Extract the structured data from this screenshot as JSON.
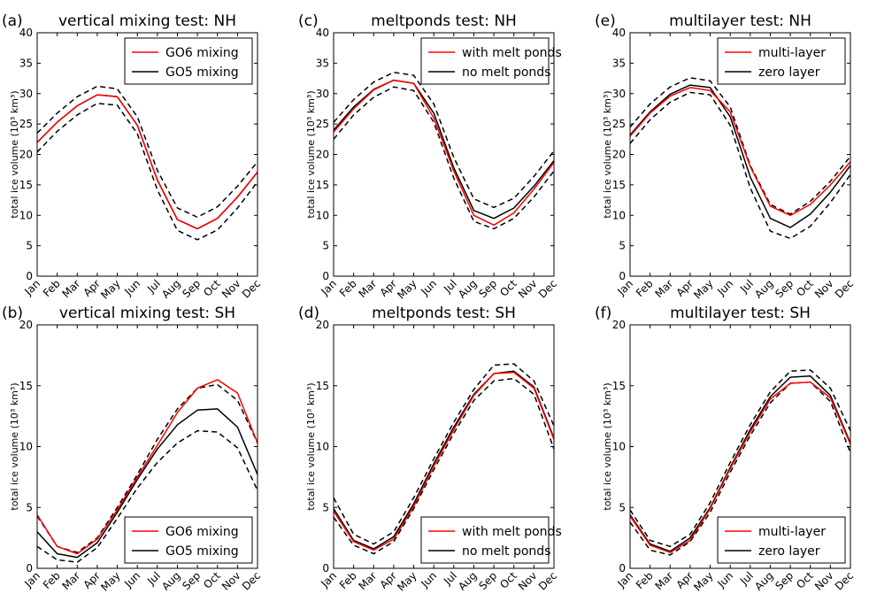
{
  "chart_data": [
    {
      "panel_label": "(a)",
      "title": "vertical mixing test: NH",
      "type": "line",
      "ylabel": "total ice volume (10³ km³)",
      "ylim": [
        0,
        40
      ],
      "yticks": [
        0,
        5,
        10,
        15,
        20,
        25,
        30,
        35,
        40
      ],
      "legend_position": "top-right",
      "categories": [
        "Jan",
        "Feb",
        "Mar",
        "Apr",
        "May",
        "Jun",
        "Jul",
        "Aug",
        "Sep",
        "Oct",
        "Nov",
        "Dec"
      ],
      "series": [
        {
          "name": "GO6 mixing",
          "color": "#ff0000",
          "style": "solid",
          "values": [
            22.0,
            25.3,
            28.0,
            29.8,
            29.5,
            24.8,
            15.8,
            9.3,
            7.8,
            9.5,
            13.0,
            17.1
          ]
        },
        {
          "name": "GO5 mixing",
          "color": "#000000",
          "style": "solid",
          "values": [
            22.0,
            25.3,
            28.0,
            29.8,
            29.5,
            24.8,
            15.8,
            9.3,
            7.8,
            9.5,
            13.0,
            17.1
          ]
        },
        {
          "color": "#000000",
          "style": "dashed",
          "values": [
            23.5,
            26.8,
            29.5,
            31.2,
            30.8,
            26.2,
            17.4,
            11.2,
            9.7,
            11.4,
            14.8,
            18.8
          ]
        },
        {
          "color": "#000000",
          "style": "dashed",
          "values": [
            20.4,
            23.8,
            26.5,
            28.4,
            28.1,
            23.4,
            14.2,
            7.5,
            6.0,
            7.6,
            11.2,
            15.5
          ]
        }
      ]
    },
    {
      "panel_label": "(c)",
      "title": "meltponds test: NH",
      "type": "line",
      "ylabel": "total ice volume (10³ km³)",
      "ylim": [
        0,
        40
      ],
      "yticks": [
        0,
        5,
        10,
        15,
        20,
        25,
        30,
        35,
        40
      ],
      "legend_position": "top-right",
      "categories": [
        "Jan",
        "Feb",
        "Mar",
        "Apr",
        "May",
        "Jun",
        "Jul",
        "Aug",
        "Sep",
        "Oct",
        "Nov",
        "Dec"
      ],
      "series": [
        {
          "name": "with melt ponds",
          "color": "#ff0000",
          "style": "solid",
          "values": [
            23.7,
            27.5,
            30.6,
            32.2,
            31.7,
            26.0,
            17.3,
            10.0,
            8.4,
            10.4,
            14.3,
            18.7
          ]
        },
        {
          "name": "no melt ponds",
          "color": "#000000",
          "style": "solid",
          "values": [
            24.0,
            27.8,
            30.7,
            32.2,
            31.7,
            26.8,
            17.8,
            10.8,
            9.5,
            11.2,
            14.8,
            19.0
          ]
        },
        {
          "color": "#000000",
          "style": "dashed",
          "values": [
            25.3,
            29.0,
            31.9,
            33.5,
            33.0,
            28.3,
            19.5,
            12.7,
            11.3,
            12.8,
            16.4,
            20.6
          ]
        },
        {
          "color": "#000000",
          "style": "dashed",
          "values": [
            22.5,
            26.5,
            29.4,
            31.1,
            30.5,
            25.3,
            16.1,
            9.0,
            7.8,
            9.5,
            13.0,
            17.3
          ]
        }
      ]
    },
    {
      "panel_label": "(e)",
      "title": "multilayer test: NH",
      "type": "line",
      "ylabel": "total ice volume (10³ km³)",
      "ylim": [
        0,
        40
      ],
      "yticks": [
        0,
        5,
        10,
        15,
        20,
        25,
        30,
        35,
        40
      ],
      "legend_position": "top-right",
      "categories": [
        "Jan",
        "Feb",
        "Mar",
        "Apr",
        "May",
        "Jun",
        "Jul",
        "Aug",
        "Sep",
        "Oct",
        "Nov",
        "Dec"
      ],
      "series": [
        {
          "name": "multi-layer",
          "color": "#ff0000",
          "style": "solid",
          "values": [
            23.0,
            26.8,
            29.6,
            31.0,
            30.5,
            27.0,
            18.0,
            11.5,
            10.0,
            11.8,
            15.0,
            18.8
          ]
        },
        {
          "name": "zero layer",
          "color": "#000000",
          "style": "solid",
          "values": [
            23.2,
            27.0,
            29.9,
            31.4,
            31.0,
            26.2,
            16.3,
            9.5,
            8.0,
            10.2,
            13.8,
            18.2
          ]
        },
        {
          "color": "#000000",
          "style": "dashed",
          "values": [
            24.5,
            28.3,
            31.1,
            32.6,
            32.1,
            27.8,
            18.2,
            11.8,
            10.2,
            12.3,
            15.6,
            19.7
          ]
        },
        {
          "color": "#000000",
          "style": "dashed",
          "values": [
            21.8,
            25.7,
            28.6,
            30.2,
            29.8,
            24.8,
            14.5,
            7.4,
            6.2,
            8.2,
            12.1,
            16.7
          ]
        }
      ]
    },
    {
      "panel_label": "(b)",
      "title": "vertical mixing test: SH",
      "type": "line",
      "ylabel": "total ice volume (10³ km³)",
      "ylim": [
        0,
        20
      ],
      "yticks": [
        0,
        5,
        10,
        15,
        20
      ],
      "legend_position": "bottom-right",
      "categories": [
        "Jan",
        "Feb",
        "Mar",
        "Apr",
        "May",
        "Jun",
        "Jul",
        "Aug",
        "Sep",
        "Oct",
        "Nov",
        "Dec"
      ],
      "series": [
        {
          "name": "GO6 mixing",
          "color": "#ff0000",
          "style": "solid",
          "values": [
            4.4,
            1.8,
            1.2,
            2.4,
            4.8,
            7.5,
            10.1,
            12.8,
            14.8,
            15.5,
            14.4,
            10.3
          ]
        },
        {
          "name": "GO5 mixing",
          "color": "#000000",
          "style": "solid",
          "values": [
            3.0,
            1.2,
            0.9,
            2.1,
            4.6,
            7.3,
            9.8,
            11.8,
            13.0,
            13.1,
            11.6,
            7.7
          ]
        },
        {
          "color": "#000000",
          "style": "dashed",
          "values": [
            4.3,
            1.8,
            1.3,
            2.5,
            5.0,
            7.7,
            10.6,
            13.1,
            14.8,
            15.1,
            13.8,
            10.3
          ]
        },
        {
          "color": "#000000",
          "style": "dashed",
          "values": [
            1.8,
            0.7,
            0.5,
            1.7,
            4.1,
            6.6,
            8.7,
            10.3,
            11.3,
            11.2,
            9.9,
            6.4
          ]
        }
      ]
    },
    {
      "panel_label": "(d)",
      "title": "meltponds test: SH",
      "type": "line",
      "ylabel": "total ice volume (10³ km³)",
      "ylim": [
        0,
        20
      ],
      "yticks": [
        0,
        5,
        10,
        15,
        20
      ],
      "legend_position": "bottom-right",
      "categories": [
        "Jan",
        "Feb",
        "Mar",
        "Apr",
        "May",
        "Jun",
        "Jul",
        "Aug",
        "Sep",
        "Oct",
        "Nov",
        "Dec"
      ],
      "series": [
        {
          "name": "with melt ponds",
          "color": "#ff0000",
          "style": "solid",
          "values": [
            4.7,
            2.2,
            1.5,
            2.4,
            5.1,
            8.4,
            11.4,
            14.2,
            16.0,
            16.1,
            14.8,
            10.6
          ]
        },
        {
          "name": "no melt ponds",
          "color": "#000000",
          "style": "solid",
          "values": [
            4.9,
            2.3,
            1.6,
            2.6,
            5.3,
            8.6,
            11.6,
            14.3,
            16.0,
            16.2,
            14.9,
            10.7
          ]
        },
        {
          "color": "#000000",
          "style": "dashed",
          "values": [
            5.8,
            2.8,
            2.0,
            3.0,
            5.8,
            9.0,
            12.0,
            14.7,
            16.7,
            16.8,
            15.4,
            11.7
          ]
        },
        {
          "color": "#000000",
          "style": "dashed",
          "values": [
            4.2,
            1.9,
            1.2,
            2.2,
            4.9,
            8.1,
            11.1,
            13.8,
            15.4,
            15.6,
            14.3,
            9.8
          ]
        }
      ]
    },
    {
      "panel_label": "(f)",
      "title": "multilayer test: SH",
      "type": "line",
      "ylabel": "total ice volume (10³ km³)",
      "ylim": [
        0,
        20
      ],
      "yticks": [
        0,
        5,
        10,
        15,
        20
      ],
      "legend_position": "bottom-right",
      "categories": [
        "Jan",
        "Feb",
        "Mar",
        "Apr",
        "May",
        "Jun",
        "Jul",
        "Aug",
        "Sep",
        "Oct",
        "Nov",
        "Dec"
      ],
      "series": [
        {
          "name": "multi-layer",
          "color": "#ff0000",
          "style": "solid",
          "values": [
            4.3,
            1.9,
            1.3,
            2.3,
            4.9,
            8.2,
            11.2,
            13.9,
            15.2,
            15.3,
            14.0,
            10.2
          ]
        },
        {
          "name": "zero layer",
          "color": "#000000",
          "style": "solid",
          "values": [
            4.4,
            2.0,
            1.4,
            2.5,
            5.0,
            8.3,
            11.4,
            14.1,
            15.7,
            15.8,
            14.2,
            10.3
          ]
        },
        {
          "color": "#000000",
          "style": "dashed",
          "values": [
            4.8,
            2.3,
            1.8,
            2.8,
            5.4,
            8.7,
            11.8,
            14.5,
            16.2,
            16.3,
            14.8,
            11.3
          ]
        },
        {
          "color": "#000000",
          "style": "dashed",
          "values": [
            3.8,
            1.5,
            1.1,
            2.2,
            4.6,
            7.9,
            10.9,
            13.6,
            15.2,
            15.3,
            13.7,
            9.5
          ]
        }
      ]
    }
  ]
}
